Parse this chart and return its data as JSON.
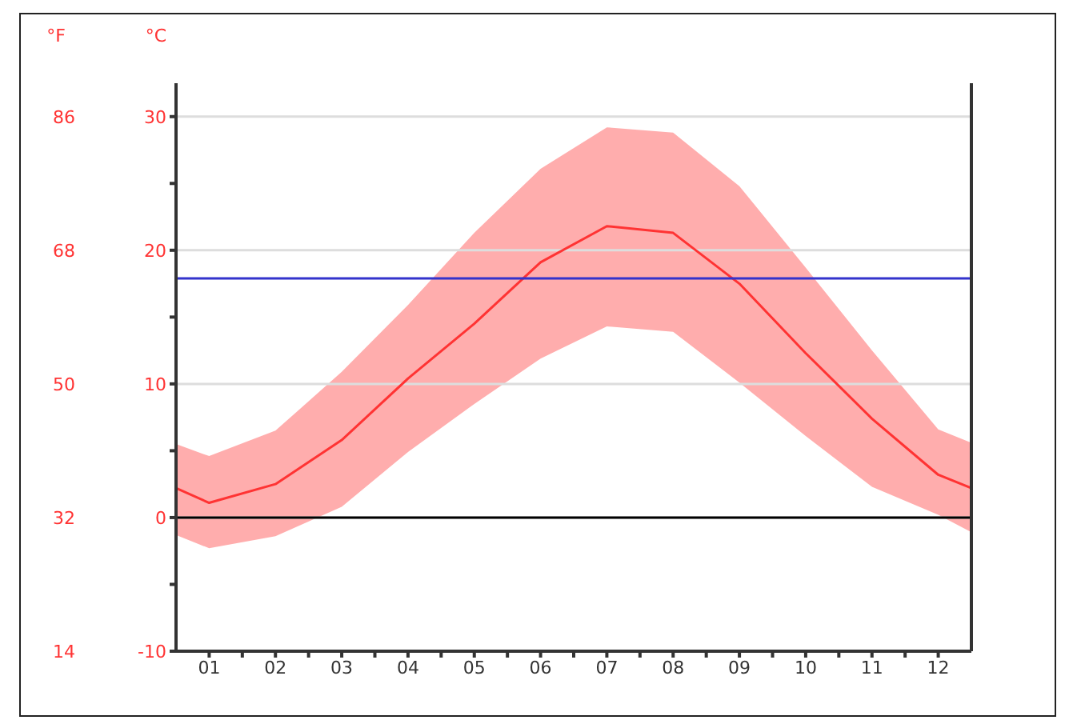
{
  "chart_data": {
    "type": "line",
    "ylabel": "°C",
    "y2label": "°F",
    "x": [
      0.5,
      1,
      2,
      3,
      4,
      5,
      6,
      7,
      8,
      9,
      10,
      11,
      12,
      12.5
    ],
    "xlim": [
      0.5,
      12.5
    ],
    "xticks": [
      {
        "value": 1,
        "label": "01"
      },
      {
        "value": 1.5,
        "label": null
      },
      {
        "value": 2,
        "label": "02"
      },
      {
        "value": 2.5,
        "label": null
      },
      {
        "value": 3,
        "label": "03"
      },
      {
        "value": 3.5,
        "label": null
      },
      {
        "value": 4,
        "label": "04"
      },
      {
        "value": 4.5,
        "label": null
      },
      {
        "value": 5,
        "label": "05"
      },
      {
        "value": 5.5,
        "label": null
      },
      {
        "value": 6,
        "label": "06"
      },
      {
        "value": 6.5,
        "label": null
      },
      {
        "value": 7,
        "label": "07"
      },
      {
        "value": 7.5,
        "label": null
      },
      {
        "value": 8,
        "label": "08"
      },
      {
        "value": 8.5,
        "label": null
      },
      {
        "value": 9,
        "label": "09"
      },
      {
        "value": 9.5,
        "label": null
      },
      {
        "value": 10,
        "label": "10"
      },
      {
        "value": 10.5,
        "label": null
      },
      {
        "value": 11,
        "label": "11"
      },
      {
        "value": 11.5,
        "label": null
      },
      {
        "value": 12,
        "label": "12"
      }
    ],
    "ylim": [
      -10,
      32.5
    ],
    "yticks": [
      -10,
      {
        "value": -5,
        "label": null
      },
      0,
      {
        "value": 5,
        "label": null
      },
      10,
      {
        "value": 15,
        "label": null
      },
      20,
      {
        "value": 25,
        "label": null
      },
      30
    ],
    "y2lim": [
      14,
      90.5
    ],
    "y2ticks": [
      14,
      32,
      50,
      68,
      86
    ],
    "series": [
      {
        "color": "#ff3333",
        "values": [
          2.2,
          1.1,
          2.5,
          5.8,
          10.4,
          14.5,
          19.1,
          21.8,
          21.3,
          17.5,
          12.3,
          7.4,
          3.2,
          2.2
        ],
        "lower": [
          -1.3,
          -2.3,
          -1.4,
          0.8,
          4.9,
          8.5,
          11.9,
          14.3,
          13.9,
          10.1,
          6.1,
          2.3,
          0.2,
          -1.1
        ],
        "upper": [
          5.5,
          4.6,
          6.5,
          10.9,
          15.9,
          21.3,
          26.1,
          29.2,
          28.8,
          24.8,
          18.7,
          12.5,
          6.6,
          5.6
        ]
      }
    ],
    "ref_lines": [
      {
        "axis": "y",
        "value": 0,
        "color": "#000000"
      },
      {
        "axis": "y",
        "value": 17.9,
        "color": "#3333cc"
      }
    ],
    "grid": "y"
  }
}
